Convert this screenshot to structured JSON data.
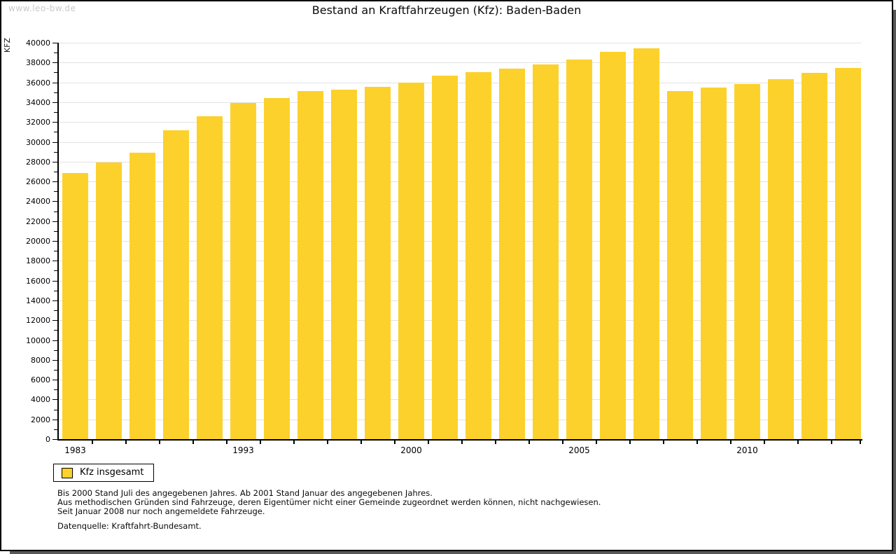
{
  "watermark": "www.leo-bw.de",
  "title": "Bestand an Kraftfahrzeugen (Kfz): Baden-Baden",
  "legend": {
    "label": "Kfz insgesamt"
  },
  "footnotes": [
    "Bis 2000 Stand Juli des angegebenen Jahres. Ab 2001 Stand Januar des angegebenen Jahres.",
    "Aus methodischen Gründen sind Fahrzeuge, deren Eigentümer nicht einer Gemeinde zugeordnet werden können, nicht nachgewiesen.",
    "Seit Januar 2008 nur noch angemeldete Fahrzeuge."
  ],
  "source": "Datenquelle: Kraftfahrt-Bundesamt.",
  "colors": {
    "bar": "#FCD12B",
    "grid": "#e2e2e2",
    "axis": "#000000",
    "watermark": "#c9c9c9",
    "frame_shadow": "#58585a"
  },
  "chart_data": {
    "type": "bar",
    "title": "Bestand an Kraftfahrzeugen (Kfz): Baden-Baden",
    "xlabel": "",
    "ylabel": "KFZ",
    "ylim": [
      0,
      40000
    ],
    "y_tick_step": 2000,
    "y_minor_tick_step": 1000,
    "grid": "horizontal",
    "legend_position": "bottom-left",
    "legend_entries": [
      "Kfz insgesamt"
    ],
    "bar_color": "#FCD12B",
    "categories": [
      "1983",
      "",
      "",
      "",
      "",
      "1993",
      "",
      "",
      "",
      "",
      "2000",
      "",
      "",
      "",
      "",
      "2005",
      "",
      "",
      "",
      "",
      "2010",
      "",
      "",
      ""
    ],
    "x_tick_labels": [
      {
        "index": 0,
        "label": "1983"
      },
      {
        "index": 5,
        "label": "1993"
      },
      {
        "index": 10,
        "label": "2000"
      },
      {
        "index": 15,
        "label": "2005"
      },
      {
        "index": 20,
        "label": "2010"
      }
    ],
    "series": [
      {
        "name": "Kfz insgesamt",
        "values": [
          26850,
          27950,
          28900,
          31200,
          32600,
          33900,
          34400,
          35100,
          35250,
          35550,
          35950,
          36650,
          37000,
          37400,
          37800,
          38300,
          39050,
          39450,
          35100,
          35450,
          35850,
          36300,
          36950,
          37450
        ]
      }
    ]
  }
}
